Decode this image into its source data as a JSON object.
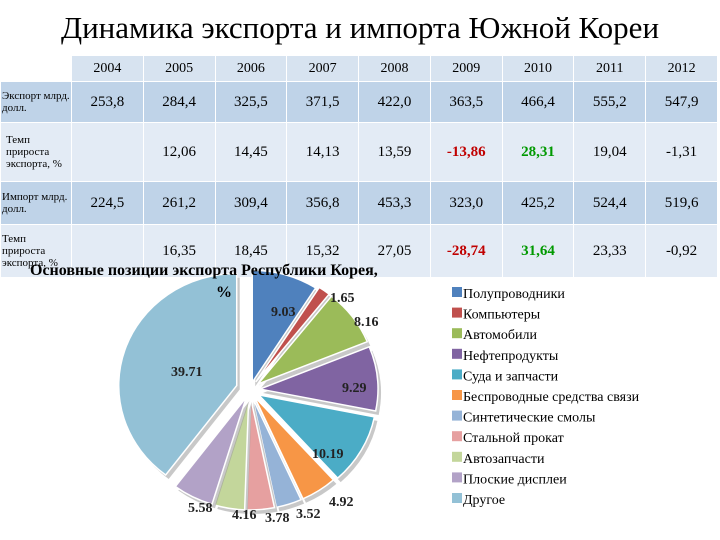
{
  "title": "Динамика экспорта и импорта Южной Кореи",
  "table": {
    "years": [
      "2004",
      "2005",
      "2006",
      "2007",
      "2008",
      "2009",
      "2010",
      "2011",
      "2012"
    ],
    "rows": [
      {
        "label": "Экспорт млрд. долл.",
        "values": [
          "253,8",
          "284,4",
          "325,5",
          "371,5",
          "422,0",
          "363,5",
          "466,4",
          "555,2",
          "547,9"
        ]
      },
      {
        "label": "Темп прироста экспорта, %",
        "values": [
          "",
          "12,06",
          "14,45",
          "14,13",
          "13,59",
          "-13,86",
          "28,31",
          "19,04",
          "-1,31"
        ]
      },
      {
        "label": "Импорт млрд. долл.",
        "values": [
          "224,5",
          "261,2",
          "309,4",
          "356,8",
          "453,3",
          "323,0",
          "425,2",
          "524,4",
          "519,6"
        ]
      },
      {
        "label": "Темп прироста экспорта, %",
        "values": [
          "",
          "16,35",
          "18,45",
          "15,32",
          "27,05",
          "-28,74",
          "31,64",
          "23,33",
          "-0,92"
        ]
      }
    ]
  },
  "chart_data": {
    "type": "pie",
    "title": "Основные позиции экспорта Республики Корея, %",
    "categories": [
      "Полупроводники",
      "Компьютеры",
      "Автомобили",
      "Нефтепродукты",
      "Суда и запчасти",
      "Беспроводные средства связи",
      "Синтетические смолы",
      "Стальной прокат",
      "Автозапчасти",
      "Плоские дисплеи",
      "Другое"
    ],
    "values": [
      9.03,
      1.65,
      8.16,
      9.29,
      10.19,
      4.92,
      3.52,
      3.78,
      4.16,
      5.58,
      39.71
    ],
    "labels": [
      "9.03",
      "1.65",
      "8.16",
      "9.29",
      "10.19",
      "4.92",
      "3.52",
      "3.78",
      "4.16",
      "5.58",
      "39.71"
    ],
    "colors": [
      "#4f81bd",
      "#c0504d",
      "#9bbb59",
      "#8064a2",
      "#4bacc6",
      "#f79646",
      "#95b3d7",
      "#e6a0a0",
      "#c3d69b",
      "#b2a2c7",
      "#93c1d6"
    ],
    "legend_position": "right"
  }
}
